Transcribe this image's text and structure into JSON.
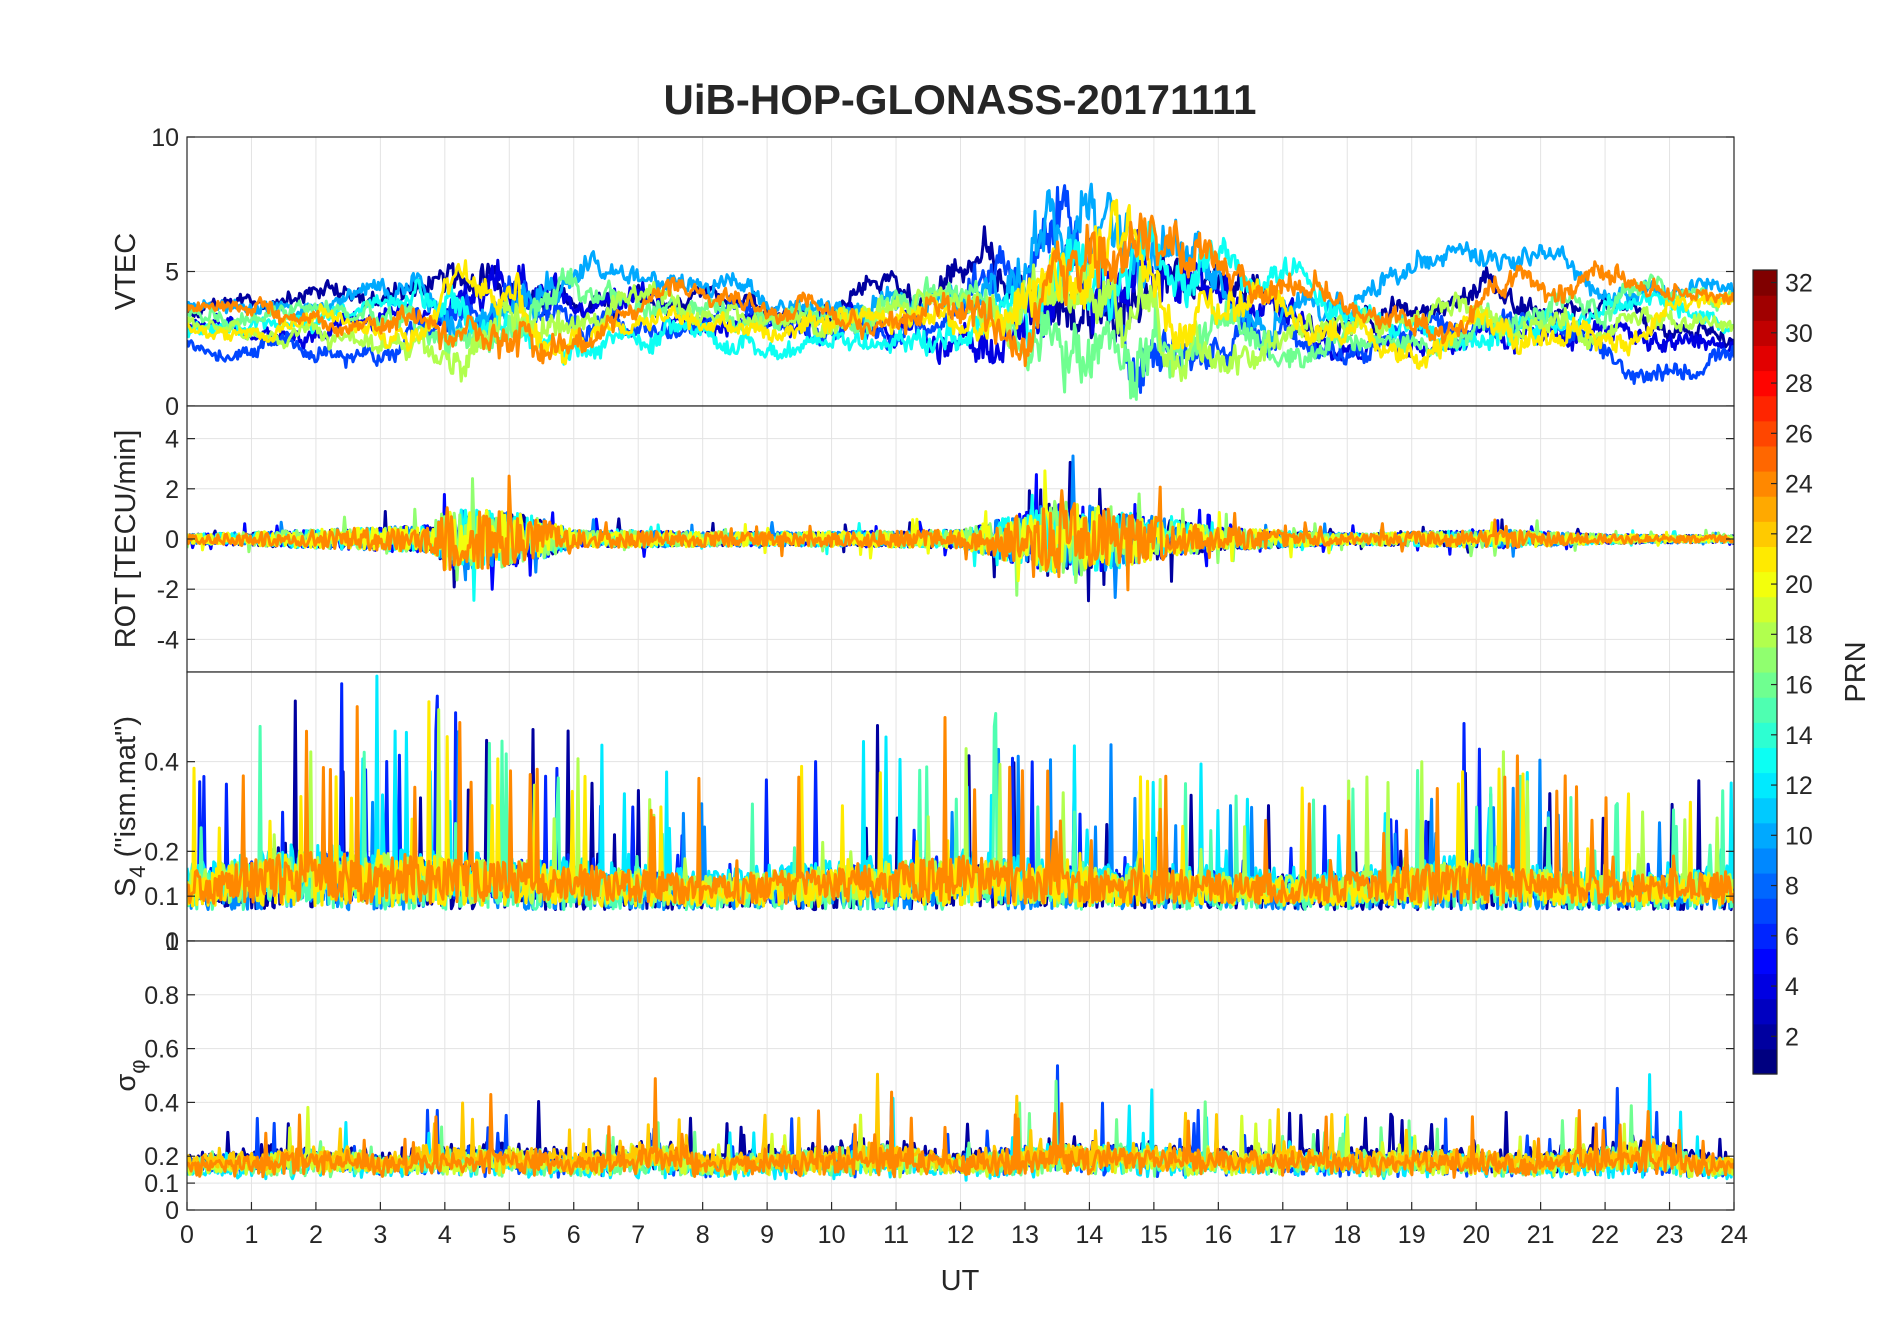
{
  "chart_data": {
    "type": "line",
    "title": "UiB-HOP-GLONASS-20171111",
    "xlabel": "UT",
    "xlim": [
      0,
      24
    ],
    "x_ticks": [
      "0",
      "1",
      "2",
      "3",
      "4",
      "5",
      "6",
      "7",
      "8",
      "9",
      "10",
      "11",
      "12",
      "13",
      "14",
      "15",
      "16",
      "17",
      "18",
      "19",
      "20",
      "21",
      "22",
      "23",
      "24"
    ],
    "grid": true,
    "panels": [
      {
        "id": "vtec",
        "ylabel": "VTEC",
        "ylim": [
          0,
          10
        ],
        "y_tick_values": [
          0,
          5,
          10
        ],
        "y_ticks": [
          "0",
          "5",
          "10"
        ],
        "baseline": 2.6,
        "activity": [
          [
            0,
            0.6
          ],
          [
            3,
            0.9
          ],
          [
            4,
            1.6
          ],
          [
            5.2,
            2.0
          ],
          [
            6,
            1.2
          ],
          [
            8,
            0.9
          ],
          [
            10,
            1.0
          ],
          [
            12,
            1.4
          ],
          [
            13,
            2.6
          ],
          [
            13.5,
            3.0
          ],
          [
            14.9,
            3.2
          ],
          [
            15.5,
            2.0
          ],
          [
            17,
            1.3
          ],
          [
            19,
            1.1
          ],
          [
            21,
            1.2
          ],
          [
            22.5,
            1.0
          ],
          [
            24,
            0.8
          ]
        ],
        "series": [
          {
            "prn": 2,
            "center": 3.2
          },
          {
            "prn": 4,
            "center": 2.4
          },
          {
            "prn": 7,
            "center": 2.0
          },
          {
            "prn": 10,
            "center": 3.4
          },
          {
            "prn": 13,
            "center": 2.4
          },
          {
            "prn": 16,
            "center": 3.0
          },
          {
            "prn": 18,
            "center": 2.8
          },
          {
            "prn": 21,
            "center": 2.6
          },
          {
            "prn": 24,
            "center": 3.1
          }
        ]
      },
      {
        "id": "rot",
        "ylabel": "ROT [TECU/min]",
        "ylim": [
          -5.3,
          5.3
        ],
        "y_tick_values": [
          -4,
          -2,
          0,
          2,
          4
        ],
        "y_ticks": [
          "-4",
          "-2",
          "0",
          "2",
          "4"
        ],
        "baseline": 0,
        "activity": [
          [
            0,
            0.2
          ],
          [
            3.8,
            0.6
          ],
          [
            4,
            1.4
          ],
          [
            5.2,
            1.2
          ],
          [
            6,
            0.4
          ],
          [
            9,
            0.3
          ],
          [
            12,
            0.4
          ],
          [
            13,
            1.2
          ],
          [
            13.5,
            1.8
          ],
          [
            15,
            1.0
          ],
          [
            16,
            0.5
          ],
          [
            18,
            0.25
          ],
          [
            20.5,
            0.4
          ],
          [
            22,
            0.2
          ],
          [
            24,
            0.15
          ]
        ],
        "series": [
          {
            "prn": 2,
            "center": 0
          },
          {
            "prn": 5,
            "center": 0
          },
          {
            "prn": 9,
            "center": 0
          },
          {
            "prn": 13,
            "center": 0
          },
          {
            "prn": 17,
            "center": 0
          },
          {
            "prn": 20,
            "center": 0
          },
          {
            "prn": 24,
            "center": 0
          }
        ]
      },
      {
        "id": "s4",
        "ylabel": "S4 (\"ism.mat\")",
        "ylabel_main": "S",
        "ylabel_sub": "4",
        "ylabel_rest": " (\"ism.mat\")",
        "ylim": [
          0,
          0.6
        ],
        "y_tick_values": [
          0,
          0.1,
          0.2,
          0.4
        ],
        "y_ticks": [
          "0",
          "0.1",
          "0.2",
          "0.4"
        ],
        "baseline": 0.1,
        "activity": [
          [
            0,
            0.12
          ],
          [
            1.6,
            0.2
          ],
          [
            4,
            0.18
          ],
          [
            6,
            0.15
          ],
          [
            8,
            0.1
          ],
          [
            11,
            0.16
          ],
          [
            12,
            0.18
          ],
          [
            13.5,
            0.14
          ],
          [
            16,
            0.12
          ],
          [
            17.5,
            0.1
          ],
          [
            19,
            0.14
          ],
          [
            20,
            0.16
          ],
          [
            22,
            0.1
          ],
          [
            24,
            0.12
          ]
        ],
        "series": [
          {
            "prn": 2,
            "center": 0.1
          },
          {
            "prn": 6,
            "center": 0.12
          },
          {
            "prn": 9,
            "center": 0.1
          },
          {
            "prn": 12,
            "center": 0.14
          },
          {
            "prn": 15,
            "center": 0.1
          },
          {
            "prn": 18,
            "center": 0.12
          },
          {
            "prn": 21,
            "center": 0.11
          },
          {
            "prn": 24,
            "center": 0.12
          }
        ]
      },
      {
        "id": "sigma",
        "ylabel": "σφ",
        "ylabel_main": "σ",
        "ylabel_sub": "φ",
        "ylim": [
          0,
          1
        ],
        "y_tick_values": [
          0,
          0.1,
          0.2,
          0.4,
          0.6,
          0.8,
          1
        ],
        "y_ticks": [
          "0",
          "0.1",
          "0.2",
          "0.4",
          "0.6",
          "0.8",
          "1"
        ],
        "baseline": 0.15,
        "activity": [
          [
            0,
            0.04
          ],
          [
            2.3,
            0.12
          ],
          [
            3,
            0.05
          ],
          [
            4,
            0.12
          ],
          [
            5,
            0.12
          ],
          [
            6,
            0.06
          ],
          [
            7.5,
            0.15
          ],
          [
            8,
            0.05
          ],
          [
            10.8,
            0.14
          ],
          [
            12,
            0.06
          ],
          [
            13.5,
            0.15
          ],
          [
            15,
            0.12
          ],
          [
            16.5,
            0.1
          ],
          [
            19,
            0.08
          ],
          [
            20,
            0.1
          ],
          [
            21,
            0.05
          ],
          [
            22.7,
            0.18
          ],
          [
            23.5,
            0.05
          ],
          [
            24,
            0.04
          ]
        ],
        "series": [
          {
            "prn": 2,
            "center": 0.17
          },
          {
            "prn": 7,
            "center": 0.15
          },
          {
            "prn": 12,
            "center": 0.14
          },
          {
            "prn": 16,
            "center": 0.15
          },
          {
            "prn": 19,
            "center": 0.15
          },
          {
            "prn": 22,
            "center": 0.16
          },
          {
            "prn": 24,
            "center": 0.15
          }
        ]
      }
    ],
    "colorbar": {
      "label": "PRN",
      "range": [
        1,
        32
      ],
      "colormap": "jet",
      "tick_values": [
        2,
        4,
        6,
        8,
        10,
        12,
        14,
        16,
        18,
        20,
        22,
        24,
        26,
        28,
        30,
        32
      ],
      "ticks": [
        "2",
        "4",
        "6",
        "8",
        "10",
        "12",
        "14",
        "16",
        "18",
        "20",
        "22",
        "24",
        "26",
        "28",
        "30",
        "32"
      ]
    }
  }
}
